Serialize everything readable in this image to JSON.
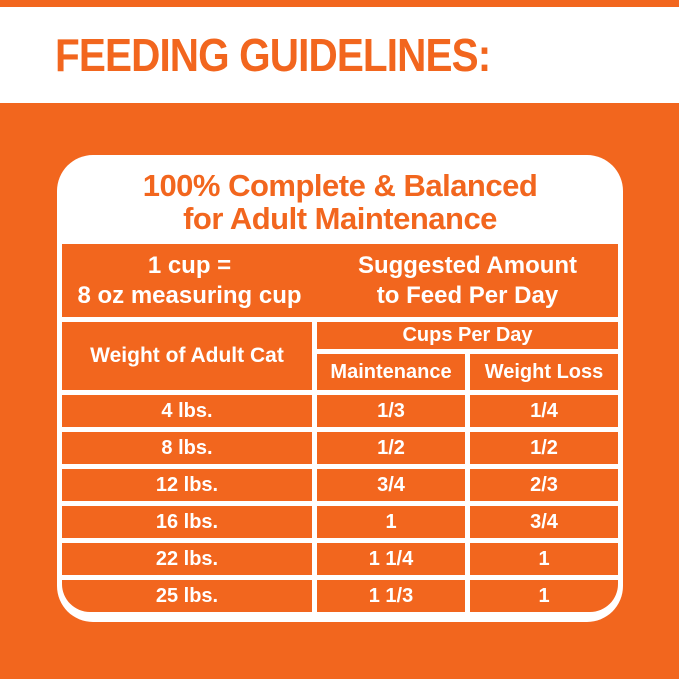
{
  "theme": {
    "orange": "#F2661E",
    "white": "#FFFFFF"
  },
  "header": {
    "title": "FEEDING GUIDELINES:"
  },
  "card": {
    "title": {
      "line1": "100% Complete & Balanced",
      "line2": "for Adult Maintenance"
    },
    "info": {
      "cup_line1": "1 cup =",
      "cup_line2": "8 oz measuring cup",
      "suggest_line1": "Suggested Amount",
      "suggest_line2": "to Feed Per Day"
    },
    "table": {
      "weight_header": "Weight of Adult Cat",
      "cups_header": "Cups Per Day",
      "col_maintenance": "Maintenance",
      "col_weight_loss": "Weight Loss",
      "rows": [
        {
          "weight": "4 lbs.",
          "maintenance": "1/3",
          "weight_loss": "1/4"
        },
        {
          "weight": "8 lbs.",
          "maintenance": "1/2",
          "weight_loss": "1/2"
        },
        {
          "weight": "12 lbs.",
          "maintenance": "3/4",
          "weight_loss": "2/3"
        },
        {
          "weight": "16 lbs.",
          "maintenance": "1",
          "weight_loss": "3/4"
        },
        {
          "weight": "22 lbs.",
          "maintenance": "1 1/4",
          "weight_loss": "1"
        },
        {
          "weight": "25 lbs.",
          "maintenance": "1 1/3",
          "weight_loss": "1"
        }
      ]
    }
  },
  "chart_data": {
    "type": "table",
    "title": "Feeding Guidelines — 100% Complete & Balanced for Adult Maintenance",
    "note": "1 cup = 8 oz measuring cup; values are suggested amount (cups) to feed per day",
    "columns": [
      "Weight of Adult Cat",
      "Cups Per Day — Maintenance",
      "Cups Per Day — Weight Loss"
    ],
    "rows": [
      [
        "4 lbs.",
        "1/3",
        "1/4"
      ],
      [
        "8 lbs.",
        "1/2",
        "1/2"
      ],
      [
        "12 lbs.",
        "3/4",
        "2/3"
      ],
      [
        "16 lbs.",
        "1",
        "3/4"
      ],
      [
        "22 lbs.",
        "1 1/4",
        "1"
      ],
      [
        "25 lbs.",
        "1 1/3",
        "1"
      ]
    ]
  }
}
